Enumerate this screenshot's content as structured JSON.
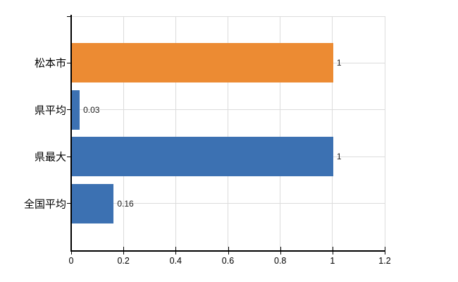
{
  "chart_data": {
    "type": "bar",
    "orientation": "horizontal",
    "categories": [
      "松本市",
      "県平均",
      "県最大",
      "全国平均"
    ],
    "values": [
      1,
      0.03,
      1,
      0.16
    ],
    "value_labels": [
      "1",
      "0.03",
      "1",
      "0.16"
    ],
    "bar_colors": [
      "#EC8B33",
      "#3C71B2",
      "#3C71B2",
      "#3C71B2"
    ],
    "x_ticks": [
      0,
      0.2,
      0.4,
      0.6,
      0.8,
      1,
      1.2
    ],
    "x_tick_labels": [
      "0",
      "0.2",
      "0.4",
      "0.6",
      "0.8",
      "1",
      "1.2"
    ],
    "xlim": [
      0,
      1.2
    ],
    "grid": true,
    "legend": "none"
  },
  "style": {
    "background_color": "#ffffff",
    "axis_color": "#000000",
    "grid_color": "#dcdcdc",
    "value_label_color": "#1a1a1a",
    "category_label_color": "#000000"
  }
}
